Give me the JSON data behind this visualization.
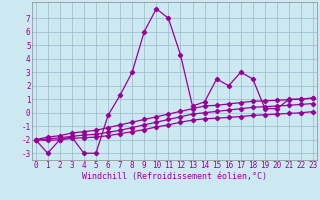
{
  "xlabel": "Windchill (Refroidissement éolien,°C)",
  "x_values": [
    0,
    1,
    2,
    3,
    4,
    5,
    6,
    7,
    8,
    9,
    10,
    11,
    12,
    13,
    14,
    15,
    16,
    17,
    18,
    19,
    20,
    21,
    22,
    23
  ],
  "main_line": [
    -2,
    -3,
    -2,
    -1.8,
    -3,
    -3,
    -0.2,
    1.3,
    3,
    6,
    7.7,
    7,
    4.3,
    0.5,
    0.8,
    2.5,
    2.0,
    3.0,
    2.5,
    0.3,
    0.3,
    1.0,
    1.0,
    1.1
  ],
  "line2": [
    -2,
    -1.8,
    -1.7,
    -1.5,
    -1.4,
    -1.3,
    -1.1,
    -0.9,
    -0.7,
    -0.5,
    -0.3,
    -0.1,
    0.1,
    0.3,
    0.5,
    0.55,
    0.65,
    0.75,
    0.85,
    0.88,
    0.92,
    0.97,
    1.02,
    1.07
  ],
  "line3": [
    -2,
    -1.95,
    -1.85,
    -1.75,
    -1.65,
    -1.6,
    -1.45,
    -1.3,
    -1.1,
    -0.9,
    -0.7,
    -0.5,
    -0.3,
    -0.1,
    0.0,
    0.1,
    0.2,
    0.3,
    0.4,
    0.45,
    0.5,
    0.55,
    0.62,
    0.68
  ],
  "line4": [
    -2,
    -2.05,
    -2.0,
    -1.9,
    -1.85,
    -1.8,
    -1.7,
    -1.55,
    -1.4,
    -1.25,
    -1.05,
    -0.9,
    -0.7,
    -0.55,
    -0.45,
    -0.4,
    -0.35,
    -0.28,
    -0.2,
    -0.15,
    -0.1,
    -0.05,
    0.0,
    0.08
  ],
  "ylim": [
    -3.5,
    8.2
  ],
  "yticks": [
    -3,
    -2,
    -1,
    0,
    1,
    2,
    3,
    4,
    5,
    6,
    7
  ],
  "xlim": [
    -0.3,
    23.3
  ],
  "xticks": [
    0,
    1,
    2,
    3,
    4,
    5,
    6,
    7,
    8,
    9,
    10,
    11,
    12,
    13,
    14,
    15,
    16,
    17,
    18,
    19,
    20,
    21,
    22,
    23
  ],
  "line_color": "#990099",
  "bg_color": "#cce8f0",
  "grid_color": "#99bbcc",
  "marker": "D",
  "marker_size": 2.2,
  "line_width": 0.9,
  "tick_label_fontsize": 5.5,
  "xlabel_fontsize": 6.0
}
